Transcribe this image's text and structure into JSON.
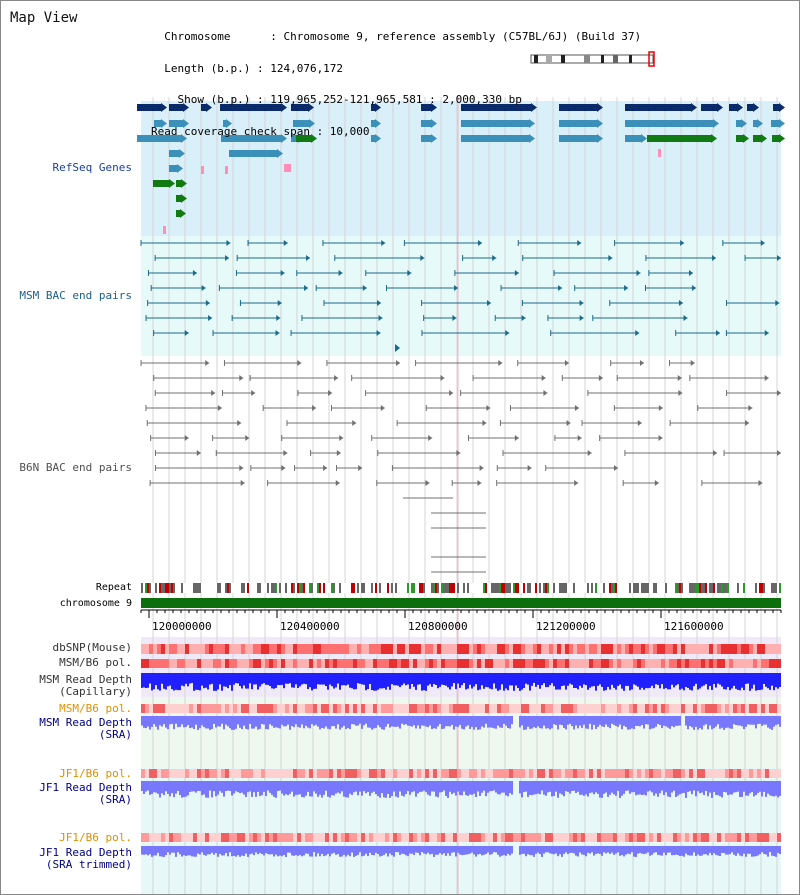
{
  "header": {
    "title": "Map View",
    "info_lines": [
      "  Chromosome      : Chromosome 9, reference assembly (C57BL/6J) (Build 37)",
      "  Length (b.p.) : 124,076,172",
      "    Show (b.p.) : 119,965,252-121,965,581 : 2,000,330 bp",
      "Read coverage check span : 10,000"
    ]
  },
  "axis": {
    "ticks": [
      "120000000",
      "120400000",
      "120800000",
      "121200000",
      "121600000"
    ],
    "chromosome_label": "chromosome 9",
    "repeat_label": "Repeat"
  },
  "tracks": {
    "refseq": "RefSeq Genes",
    "msm_bac": "MSM BAC end pairs",
    "b6n_bac": "B6N BAC end pairs",
    "dbsnp": "dbSNP(Mouse)",
    "msm_b6_pol": "MSM/B6 pol.",
    "msm_depth_cap": "MSM Read Depth\n(Capillary)",
    "msm_b6_pol2": "MSM/B6 pol.",
    "msm_depth_sra": "MSM Read Depth\n(SRA)",
    "jf1_b6_pol": "JF1/B6 pol.",
    "jf1_depth_sra": "JF1 Read Depth\n(SRA)",
    "jf1_b6_pol2": "JF1/B6 pol.",
    "jf1_depth_trim": "JF1 Read Depth\n(SRA trimmed)"
  },
  "colors": {
    "refseq_bg": "#d9f0fa",
    "msm_bg": "#e6fafa",
    "navy_gene": "#0a2a6a",
    "teal_gene": "#3a90b8",
    "green_gene": "#127a12",
    "msm_line": "#1a6a8a",
    "b6n_line": "#707070",
    "chrom_green": "#0d6e0d",
    "snp_red": "#ff6060",
    "depth_blue": "#2020ff",
    "depth_light": "#7878ff",
    "orange_label": "#e09000",
    "blue_label": "#00008b"
  }
}
